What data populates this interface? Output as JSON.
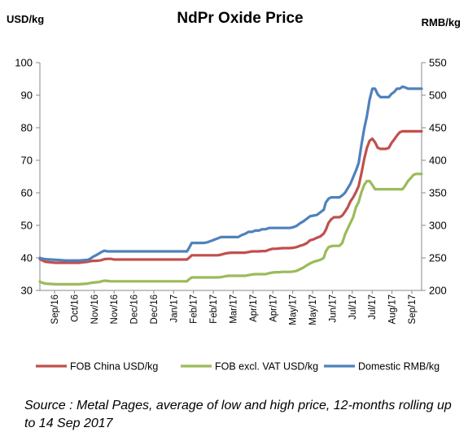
{
  "chart_data": {
    "type": "line",
    "title": "NdPr Oxide Price",
    "y_left_label": "USD/kg",
    "y_right_label": "RMB/kg",
    "ylim_left": [
      30,
      100
    ],
    "ylim_right": [
      200,
      550
    ],
    "y_left_ticks": [
      30,
      40,
      50,
      60,
      70,
      80,
      90,
      100
    ],
    "y_right_ticks": [
      200,
      250,
      300,
      350,
      400,
      450,
      500,
      550
    ],
    "x_range": [
      "Sep/16",
      "Sep/17"
    ],
    "x_tick_labels": [
      "Sep/16",
      "Oct/16",
      "Nov/16",
      "Nov/16",
      "Dec/16",
      "Dec/16",
      "Jan/17",
      "Feb/17",
      "Feb/17",
      "Mar/17",
      "Apr/17",
      "Apr/17",
      "May/17",
      "May/17",
      "Jun/17",
      "Jul/17",
      "Jul/17",
      "Aug/17",
      "Sep/17"
    ],
    "grid": false,
    "legend_position": "bottom",
    "series": [
      {
        "name": "FOB China USD/kg",
        "color": "#c0504d",
        "axis": "left",
        "x": [
          0,
          3,
          8,
          23,
          38,
          57,
          70,
          74,
          78,
          82,
          87,
          90,
          94,
          99,
          104,
          108,
          115,
          120,
          125,
          130,
          135,
          140,
          145,
          150,
          155,
          160,
          165,
          170,
          175,
          180,
          185,
          190,
          195,
          200,
          205,
          210,
          215,
          218,
          222,
          226,
          230,
          234,
          238,
          240,
          245,
          250,
          255,
          260,
          265,
          270,
          275,
          280,
          285,
          290,
          295,
          300,
          305,
          310,
          315,
          320,
          325,
          330,
          335,
          340,
          345,
          350,
          355,
          360,
          365,
          370,
          375,
          380,
          385,
          390,
          395,
          400,
          405,
          410,
          415,
          418,
          422,
          426,
          430,
          434,
          438,
          442,
          446,
          450,
          454,
          458,
          462,
          466,
          470,
          474,
          478,
          482,
          486,
          490,
          494,
          498,
          502,
          506,
          510,
          514,
          518,
          522,
          526,
          530,
          534,
          538,
          542,
          546,
          550,
          554,
          558
        ],
        "y": [
          39.6,
          39.3,
          38.8,
          38.5,
          38.5,
          38.5,
          38.8,
          39.0,
          39.1,
          39.1,
          39.2,
          39.3,
          39.6,
          39.7,
          39.7,
          39.5,
          39.5,
          39.5,
          39.5,
          39.5,
          39.5,
          39.5,
          39.5,
          39.5,
          39.5,
          39.5,
          39.5,
          39.5,
          39.5,
          39.5,
          39.5,
          39.5,
          39.5,
          39.5,
          39.5,
          39.5,
          39.5,
          40.0,
          40.8,
          40.8,
          40.8,
          40.8,
          40.8,
          40.8,
          40.8,
          40.8,
          40.8,
          40.8,
          41.0,
          41.3,
          41.5,
          41.6,
          41.6,
          41.6,
          41.6,
          41.6,
          41.8,
          42.0,
          42.0,
          42.0,
          42.1,
          42.1,
          42.5,
          42.8,
          42.8,
          42.9,
          43.0,
          43.0,
          43.0,
          43.1,
          43.3,
          43.7,
          44.0,
          44.5,
          45.4,
          45.7,
          46.2,
          46.6,
          47.5,
          48.6,
          50.8,
          51.9,
          52.5,
          52.5,
          52.5,
          53.0,
          54.2,
          55.5,
          57.4,
          58.6,
          60.2,
          62.1,
          65.9,
          70.3,
          73.8,
          76.0,
          76.6,
          75.5,
          73.8,
          73.5,
          73.5,
          73.5,
          73.8,
          75.3,
          76.4,
          77.6,
          78.6,
          78.9,
          78.9,
          78.9,
          78.9,
          78.9,
          78.9,
          78.9,
          78.9
        ]
      },
      {
        "name": "FOB excl. VAT USD/kg",
        "color": "#9bbb59",
        "axis": "left",
        "x": [
          0,
          3,
          8,
          23,
          38,
          57,
          70,
          74,
          78,
          82,
          87,
          90,
          94,
          99,
          104,
          108,
          115,
          120,
          125,
          130,
          135,
          140,
          145,
          150,
          155,
          160,
          165,
          170,
          175,
          180,
          185,
          190,
          195,
          200,
          205,
          210,
          215,
          218,
          222,
          226,
          230,
          234,
          238,
          240,
          245,
          250,
          255,
          260,
          265,
          270,
          275,
          280,
          285,
          290,
          295,
          300,
          305,
          310,
          315,
          320,
          325,
          330,
          335,
          340,
          345,
          350,
          355,
          360,
          365,
          370,
          375,
          380,
          385,
          390,
          395,
          400,
          405,
          410,
          415,
          418,
          422,
          426,
          430,
          434,
          438,
          442,
          446,
          450,
          454,
          458,
          462,
          466,
          470,
          474,
          478,
          482,
          486,
          490,
          494,
          498,
          502,
          506,
          510,
          514,
          518,
          522,
          526,
          530,
          534,
          538,
          542,
          546,
          550,
          554,
          558
        ],
        "y": [
          32.7,
          32.4,
          32.1,
          31.9,
          31.9,
          31.9,
          32.1,
          32.3,
          32.4,
          32.5,
          32.6,
          32.8,
          33.0,
          32.9,
          32.8,
          32.8,
          32.8,
          32.8,
          32.8,
          32.8,
          32.8,
          32.8,
          32.8,
          32.8,
          32.8,
          32.8,
          32.8,
          32.8,
          32.8,
          32.8,
          32.8,
          32.8,
          32.8,
          32.8,
          32.8,
          32.8,
          32.8,
          33.4,
          34.0,
          34.0,
          34.0,
          34.0,
          34.0,
          34.0,
          34.0,
          34.0,
          34.0,
          34.0,
          34.1,
          34.3,
          34.5,
          34.5,
          34.5,
          34.5,
          34.5,
          34.5,
          34.7,
          34.9,
          35.0,
          35.0,
          35.0,
          35.0,
          35.3,
          35.5,
          35.6,
          35.6,
          35.7,
          35.7,
          35.7,
          35.8,
          36.0,
          36.5,
          37.0,
          37.7,
          38.3,
          38.8,
          39.1,
          39.4,
          40.0,
          42.0,
          43.3,
          43.6,
          43.7,
          43.7,
          43.7,
          44.6,
          47.2,
          49.0,
          50.8,
          52.5,
          55.5,
          57.2,
          60.1,
          62.4,
          63.6,
          63.6,
          62.4,
          61.1,
          61.1,
          61.1,
          61.1,
          61.1,
          61.1,
          61.1,
          61.1,
          61.1,
          61.1,
          61.1,
          62.2,
          63.6,
          64.5,
          65.5,
          65.8,
          65.8,
          65.8
        ]
      },
      {
        "name": "Domestic RMB/kg",
        "color": "#4f81bd",
        "axis": "right",
        "x": [
          0,
          3,
          8,
          23,
          38,
          57,
          70,
          74,
          78,
          82,
          87,
          90,
          94,
          99,
          104,
          108,
          115,
          120,
          125,
          130,
          135,
          140,
          145,
          150,
          155,
          160,
          165,
          170,
          175,
          180,
          185,
          190,
          195,
          200,
          205,
          210,
          215,
          218,
          222,
          226,
          230,
          234,
          238,
          240,
          245,
          250,
          255,
          260,
          265,
          270,
          275,
          280,
          285,
          290,
          295,
          300,
          305,
          310,
          315,
          320,
          325,
          330,
          335,
          340,
          345,
          350,
          355,
          360,
          365,
          370,
          375,
          380,
          385,
          390,
          395,
          400,
          405,
          410,
          415,
          418,
          422,
          426,
          430,
          434,
          438,
          442,
          446,
          450,
          454,
          458,
          462,
          466,
          470,
          474,
          478,
          482,
          486,
          490,
          494,
          498,
          502,
          506,
          510,
          514,
          518,
          522,
          526,
          530,
          534,
          538,
          542,
          546,
          550,
          554,
          558
        ],
        "y": [
          250,
          249,
          248,
          247,
          246,
          246,
          247,
          249,
          252,
          254,
          257,
          259,
          261,
          260,
          260,
          260,
          260,
          260,
          260,
          260,
          260,
          260,
          260,
          260,
          260,
          260,
          260,
          260,
          260,
          260,
          260,
          260,
          260,
          260,
          260,
          260,
          260,
          265,
          273,
          273,
          273,
          273,
          273,
          273,
          274,
          276,
          278,
          280,
          282,
          282,
          282,
          282,
          282,
          282,
          285,
          287,
          290,
          290,
          292,
          292,
          294,
          294,
          296,
          296,
          296,
          296,
          296,
          296,
          296,
          297,
          299,
          303,
          306,
          310,
          314,
          315,
          316,
          320,
          324,
          335,
          341,
          343,
          343,
          343,
          343,
          346,
          350,
          357,
          364,
          374,
          384,
          396,
          423,
          448,
          468,
          493,
          510,
          510,
          501,
          497,
          497,
          497,
          497,
          502,
          505,
          510,
          510,
          513,
          512,
          510,
          510,
          510,
          510,
          510,
          510
        ]
      }
    ]
  },
  "source_text": "Source : Metal Pages, average of low and high price, 12-months rolling up to 14 Sep 2017"
}
